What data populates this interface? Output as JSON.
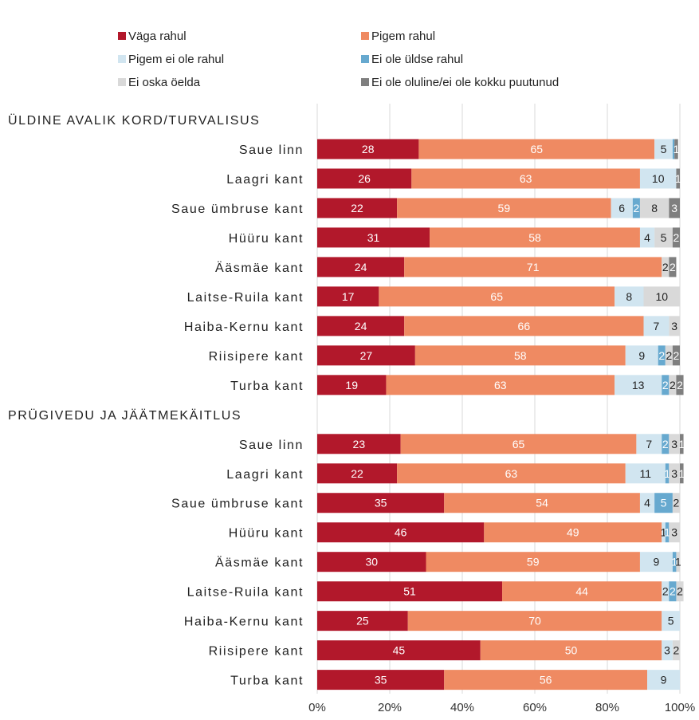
{
  "legend": [
    {
      "label": "Väga rahul",
      "color": "#b2182b"
    },
    {
      "label": "Pigem rahul",
      "color": "#ef8a62"
    },
    {
      "label": "Pigem ei ole rahul",
      "color": "#d1e5f0"
    },
    {
      "label": "Ei ole üldse rahul",
      "color": "#67a9cf"
    },
    {
      "label": "Ei oska öelda",
      "color": "#d9d9d9"
    },
    {
      "label": "Ei ole oluline/ei ole kokku puutunud",
      "color": "#7f7f7f"
    }
  ],
  "chart_data": {
    "type": "bar",
    "orientation": "horizontal",
    "stacked": true,
    "xlim": [
      0,
      100
    ],
    "x_ticks": [
      "0%",
      "20%",
      "40%",
      "60%",
      "80%",
      "100%"
    ],
    "grid": true,
    "legend_position": "top",
    "groups": [
      {
        "title": "ÜLDINE AVALIK KORD/TURVALISUS",
        "rows": [
          {
            "label": "Saue linn",
            "values": [
              28,
              65,
              5,
              0.5,
              0,
              1
            ]
          },
          {
            "label": "Laagri kant",
            "values": [
              26,
              63,
              10,
              0,
              0,
              1
            ]
          },
          {
            "label": "Saue ümbruse kant",
            "values": [
              22,
              59,
              6,
              2,
              8,
              3
            ]
          },
          {
            "label": "Hüüru kant",
            "values": [
              31,
              58,
              4,
              0,
              5,
              2
            ]
          },
          {
            "label": "Ääsmäe kant",
            "values": [
              24,
              71,
              0,
              0,
              2,
              2
            ]
          },
          {
            "label": "Laitse-Ruila kant",
            "values": [
              17,
              65,
              8,
              0,
              10,
              0
            ]
          },
          {
            "label": "Haiba-Kernu kant",
            "values": [
              24,
              66,
              7,
              0,
              3,
              0
            ]
          },
          {
            "label": "Riisipere kant",
            "values": [
              27,
              58,
              9,
              2,
              2,
              2
            ]
          },
          {
            "label": "Turba kant",
            "values": [
              19,
              63,
              13,
              2,
              2,
              2
            ]
          }
        ]
      },
      {
        "title": "PRÜGIVEDU JA JÄÄTMEKÄITLUS",
        "rows": [
          {
            "label": "Saue linn",
            "values": [
              23,
              65,
              7,
              2,
              3,
              1
            ]
          },
          {
            "label": "Laagri kant",
            "values": [
              22,
              63,
              11,
              1,
              3,
              1
            ]
          },
          {
            "label": "Saue ümbruse kant",
            "values": [
              35,
              54,
              4,
              5,
              2,
              0
            ]
          },
          {
            "label": "Hüüru kant",
            "values": [
              46,
              49,
              1,
              1,
              3,
              0
            ]
          },
          {
            "label": "Ääsmäe kant",
            "values": [
              30,
              59,
              9,
              1,
              1,
              0
            ]
          },
          {
            "label": "Laitse-Ruila kant",
            "values": [
              51,
              44,
              2,
              2,
              2,
              0
            ]
          },
          {
            "label": "Haiba-Kernu kant",
            "values": [
              25,
              70,
              5,
              0,
              0,
              0
            ]
          },
          {
            "label": "Riisipere kant",
            "values": [
              45,
              50,
              3,
              0,
              2,
              0
            ]
          },
          {
            "label": "Turba kant",
            "values": [
              35,
              56,
              9,
              0,
              0,
              0
            ]
          }
        ]
      }
    ]
  }
}
